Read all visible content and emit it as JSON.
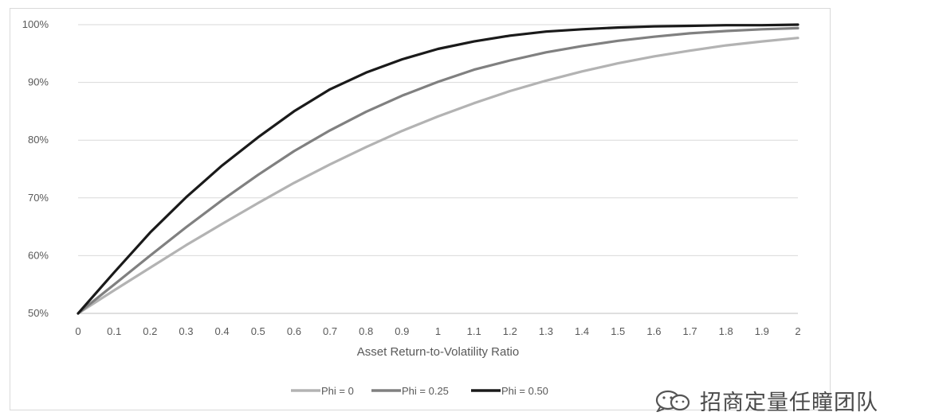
{
  "chart_data": {
    "type": "line",
    "title": "",
    "xlabel": "Asset Return-to-Volatility Ratio",
    "ylabel": "",
    "ylim": [
      0.5,
      1.0
    ],
    "y_ticks": [
      "50%",
      "60%",
      "70%",
      "80%",
      "90%",
      "100%"
    ],
    "x_ticks": [
      "0",
      "0.1",
      "0.2",
      "0.3",
      "0.4",
      "0.5",
      "0.6",
      "0.7",
      "0.8",
      "0.9",
      "1",
      "1.1",
      "1.2",
      "1.3",
      "1.4",
      "1.5",
      "1.6",
      "1.7",
      "1.8",
      "1.9",
      "2"
    ],
    "x": [
      0,
      0.1,
      0.2,
      0.3,
      0.4,
      0.5,
      0.6,
      0.7,
      0.8,
      0.9,
      1.0,
      1.1,
      1.2,
      1.3,
      1.4,
      1.5,
      1.6,
      1.7,
      1.8,
      1.9,
      2.0
    ],
    "grid": true,
    "legend_position": "bottom",
    "series": [
      {
        "name": "Phi = 0",
        "color": "#b3b3b3",
        "values": [
          0.5,
          0.54,
          0.579,
          0.618,
          0.655,
          0.691,
          0.726,
          0.758,
          0.788,
          0.816,
          0.841,
          0.864,
          0.885,
          0.903,
          0.919,
          0.933,
          0.945,
          0.955,
          0.964,
          0.971,
          0.977
        ]
      },
      {
        "name": "Phi = 0.25",
        "color": "#808080",
        "values": [
          0.5,
          0.55,
          0.6,
          0.649,
          0.696,
          0.74,
          0.781,
          0.817,
          0.849,
          0.877,
          0.901,
          0.922,
          0.938,
          0.952,
          0.963,
          0.972,
          0.979,
          0.985,
          0.989,
          0.992,
          0.994
        ]
      },
      {
        "name": "Phi = 0.50",
        "color": "#1a1a1a",
        "values": [
          0.5,
          0.571,
          0.64,
          0.701,
          0.756,
          0.805,
          0.85,
          0.888,
          0.917,
          0.94,
          0.958,
          0.971,
          0.981,
          0.988,
          0.992,
          0.995,
          0.997,
          0.998,
          0.999,
          0.999,
          1.0
        ]
      }
    ]
  },
  "watermark": {
    "text": "招商定量任瞳团队",
    "icon": "wechat-icon"
  }
}
